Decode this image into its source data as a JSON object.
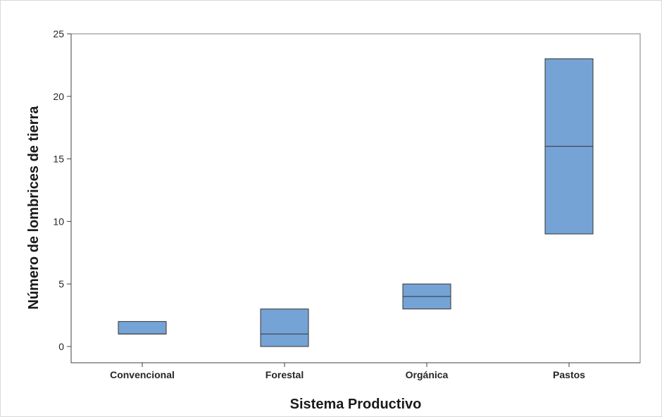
{
  "chart_data": {
    "type": "box",
    "title": "",
    "xlabel": "Sistema Productivo",
    "ylabel": "Número de lombrices de tierra",
    "ylim": [
      -1.3,
      25
    ],
    "yticks": [
      0,
      5,
      10,
      15,
      20,
      25
    ],
    "grid": false,
    "legend": "none",
    "categories": [
      "Convencional",
      "Forestal",
      "Orgánica",
      "Pastos"
    ],
    "boxes": [
      {
        "category": "Convencional",
        "q1": 1,
        "median": 1,
        "q3": 2
      },
      {
        "category": "Forestal",
        "q1": 0,
        "median": 1,
        "q3": 3
      },
      {
        "category": "Orgánica",
        "q1": 3,
        "median": 4,
        "q3": 5
      },
      {
        "category": "Pastos",
        "q1": 9,
        "median": 16,
        "q3": 23
      }
    ],
    "colors": {
      "box_fill": "#75a3d6",
      "box_edge": "#333333",
      "axis": "#404040",
      "frame": "#d9d9d9"
    }
  }
}
